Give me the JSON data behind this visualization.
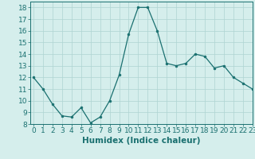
{
  "x": [
    0,
    1,
    2,
    3,
    4,
    5,
    6,
    7,
    8,
    9,
    10,
    11,
    12,
    13,
    14,
    15,
    16,
    17,
    18,
    19,
    20,
    21,
    22,
    23
  ],
  "y": [
    12,
    11,
    9.7,
    8.7,
    8.6,
    9.4,
    8.1,
    8.6,
    10,
    12.2,
    15.7,
    18,
    18,
    16,
    13.2,
    13,
    13.2,
    14,
    13.8,
    12.8,
    13,
    12,
    11.5,
    11
  ],
  "line_color": "#1a7070",
  "marker_color": "#1a7070",
  "bg_color": "#d5eeec",
  "grid_color": "#aed4d2",
  "axis_label_color": "#1a7070",
  "tick_color": "#1a7070",
  "xlabel": "Humidex (Indice chaleur)",
  "ylim": [
    8,
    18.5
  ],
  "xlim": [
    -0.3,
    23
  ],
  "yticks": [
    8,
    9,
    10,
    11,
    12,
    13,
    14,
    15,
    16,
    17,
    18
  ],
  "xticks": [
    0,
    1,
    2,
    3,
    4,
    5,
    6,
    7,
    8,
    9,
    10,
    11,
    12,
    13,
    14,
    15,
    16,
    17,
    18,
    19,
    20,
    21,
    22,
    23
  ],
  "xlabel_fontsize": 7.5,
  "tick_fontsize": 6.5
}
